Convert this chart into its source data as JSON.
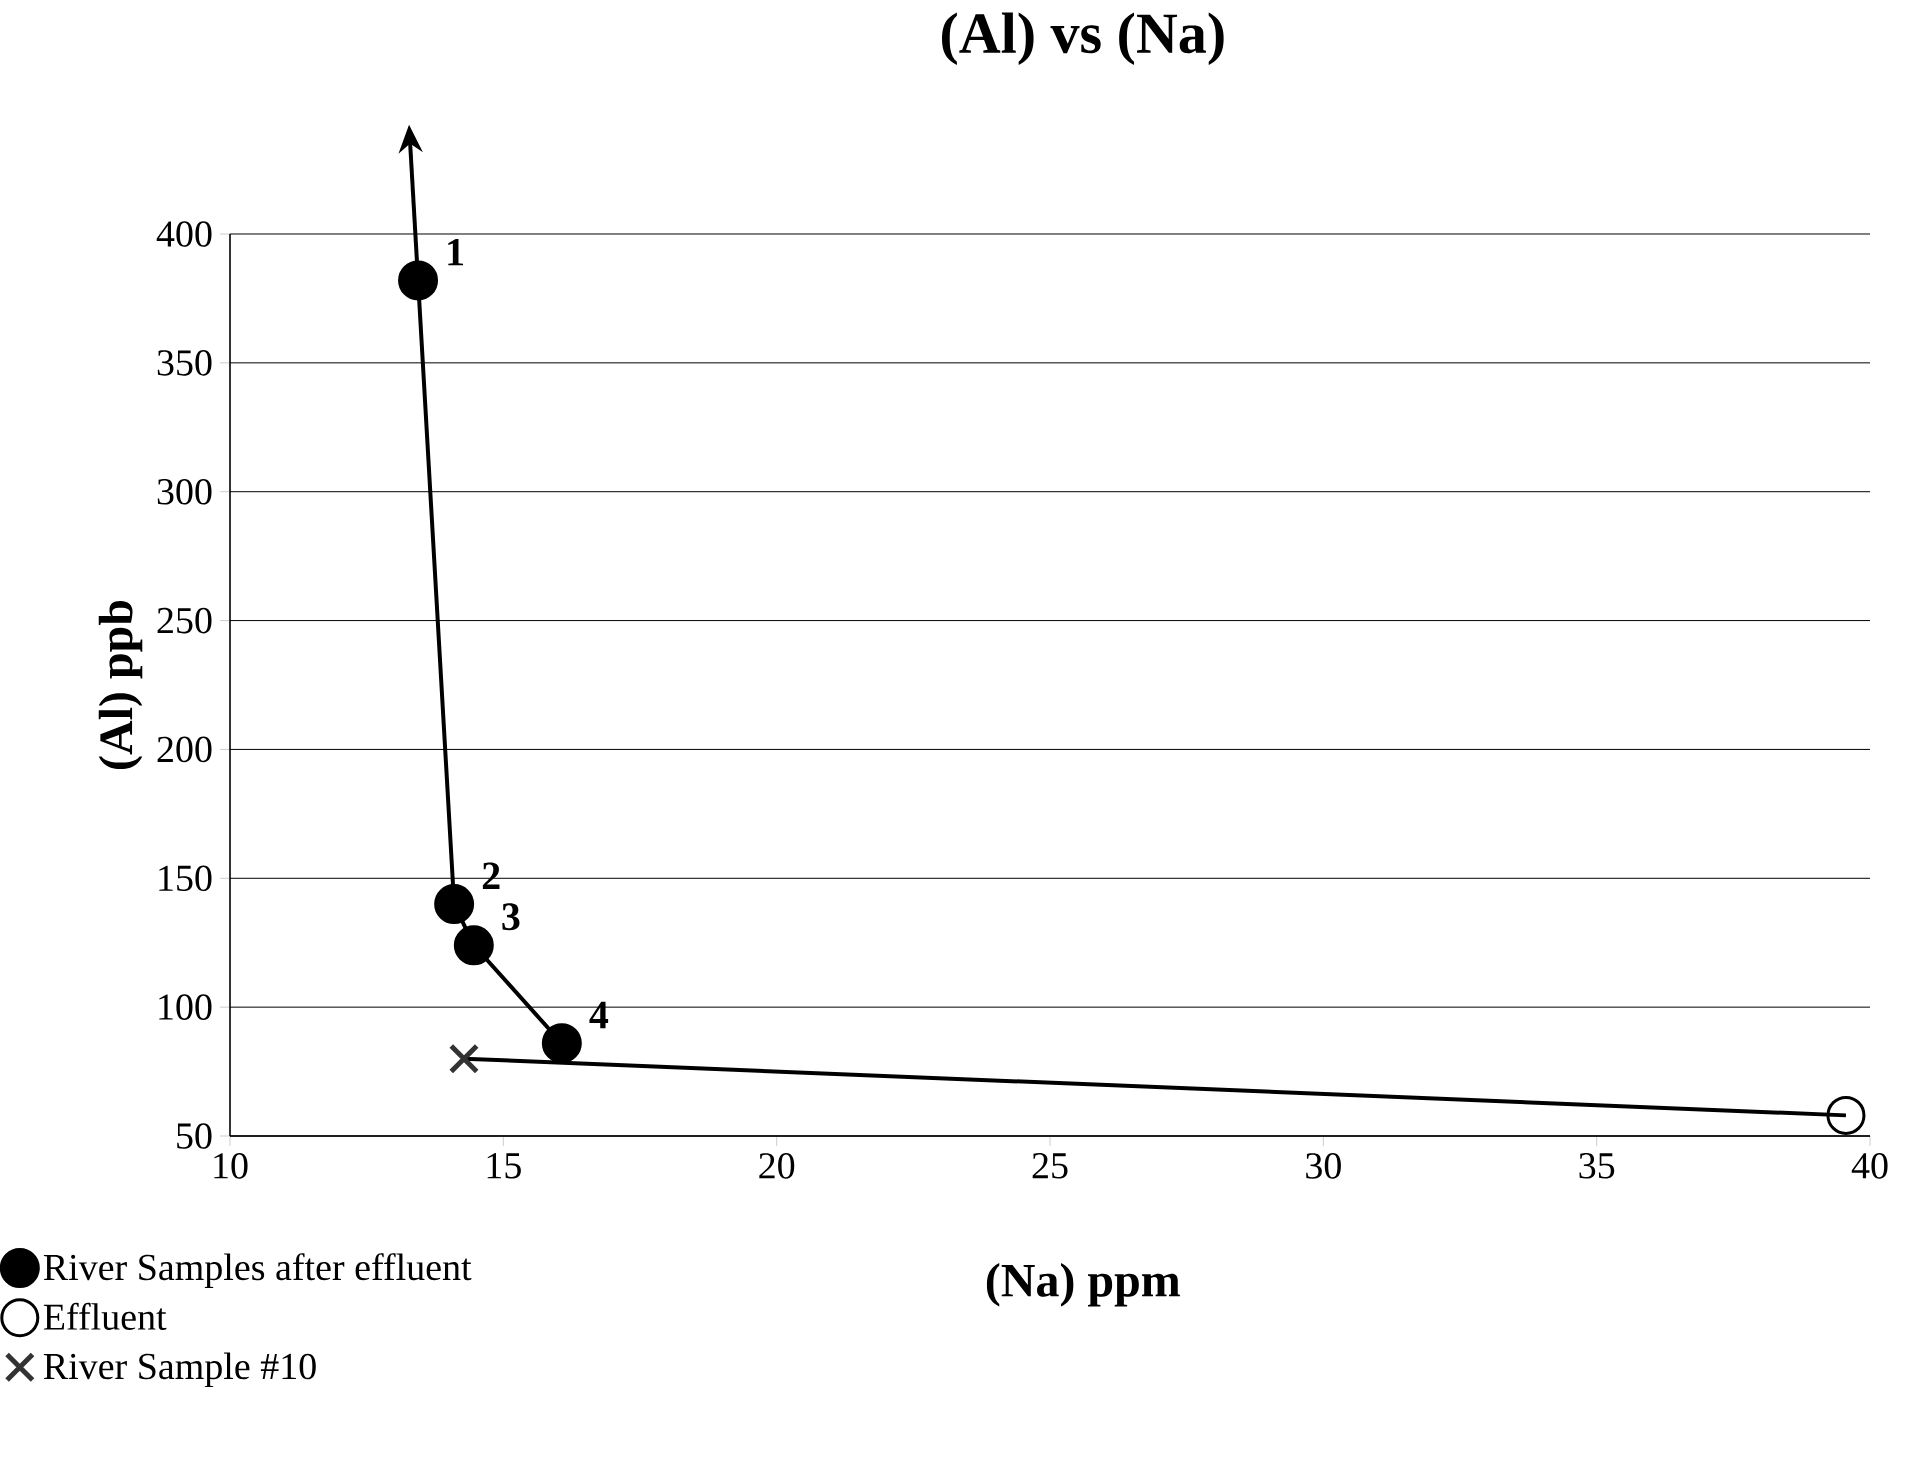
{
  "chart_data": {
    "type": "scatter",
    "title": "(Al) vs (Na)",
    "xlabel": "(Na) ppm",
    "ylabel": "(Al) ppb",
    "xlim": [
      10,
      40
    ],
    "xticks": [
      10,
      15,
      20,
      25,
      30,
      35,
      40
    ],
    "ylim": [
      50,
      400
    ],
    "yticks": [
      50,
      100,
      150,
      200,
      250,
      300,
      350,
      400
    ],
    "grid": "y",
    "legend": "bottom left",
    "series": [
      {
        "name": "River Samples after effluent",
        "type": "line",
        "marker": "circle",
        "line_style": "solid",
        "color": "#000000",
        "x": [
          13.44,
          14.1,
          14.46,
          16.07
        ],
        "values": [
          382,
          140,
          124,
          86
        ]
      },
      {
        "name": "Effluent",
        "marker": "circle",
        "color": "#000000",
        "x": [
          39.56
        ],
        "values": [
          58
        ]
      },
      {
        "name": "River Sample #10",
        "marker": "cross",
        "color": "#333333",
        "x": [
          14.28
        ],
        "values": [
          80
        ]
      },
      {
        "type": "line",
        "marker": "none",
        "line_style": "solid",
        "color": "#000000",
        "x": [
          14.28,
          39.56
        ],
        "values": [
          80,
          58
        ]
      }
    ],
    "annotations": [
      {
        "text": "1",
        "x": 13.44,
        "y": 382
      },
      {
        "text": "2",
        "x": 14.1,
        "y": 140
      },
      {
        "text": "3",
        "x": 14.46,
        "y": 124
      },
      {
        "text": "4",
        "x": 16.07,
        "y": 86
      }
    ]
  }
}
